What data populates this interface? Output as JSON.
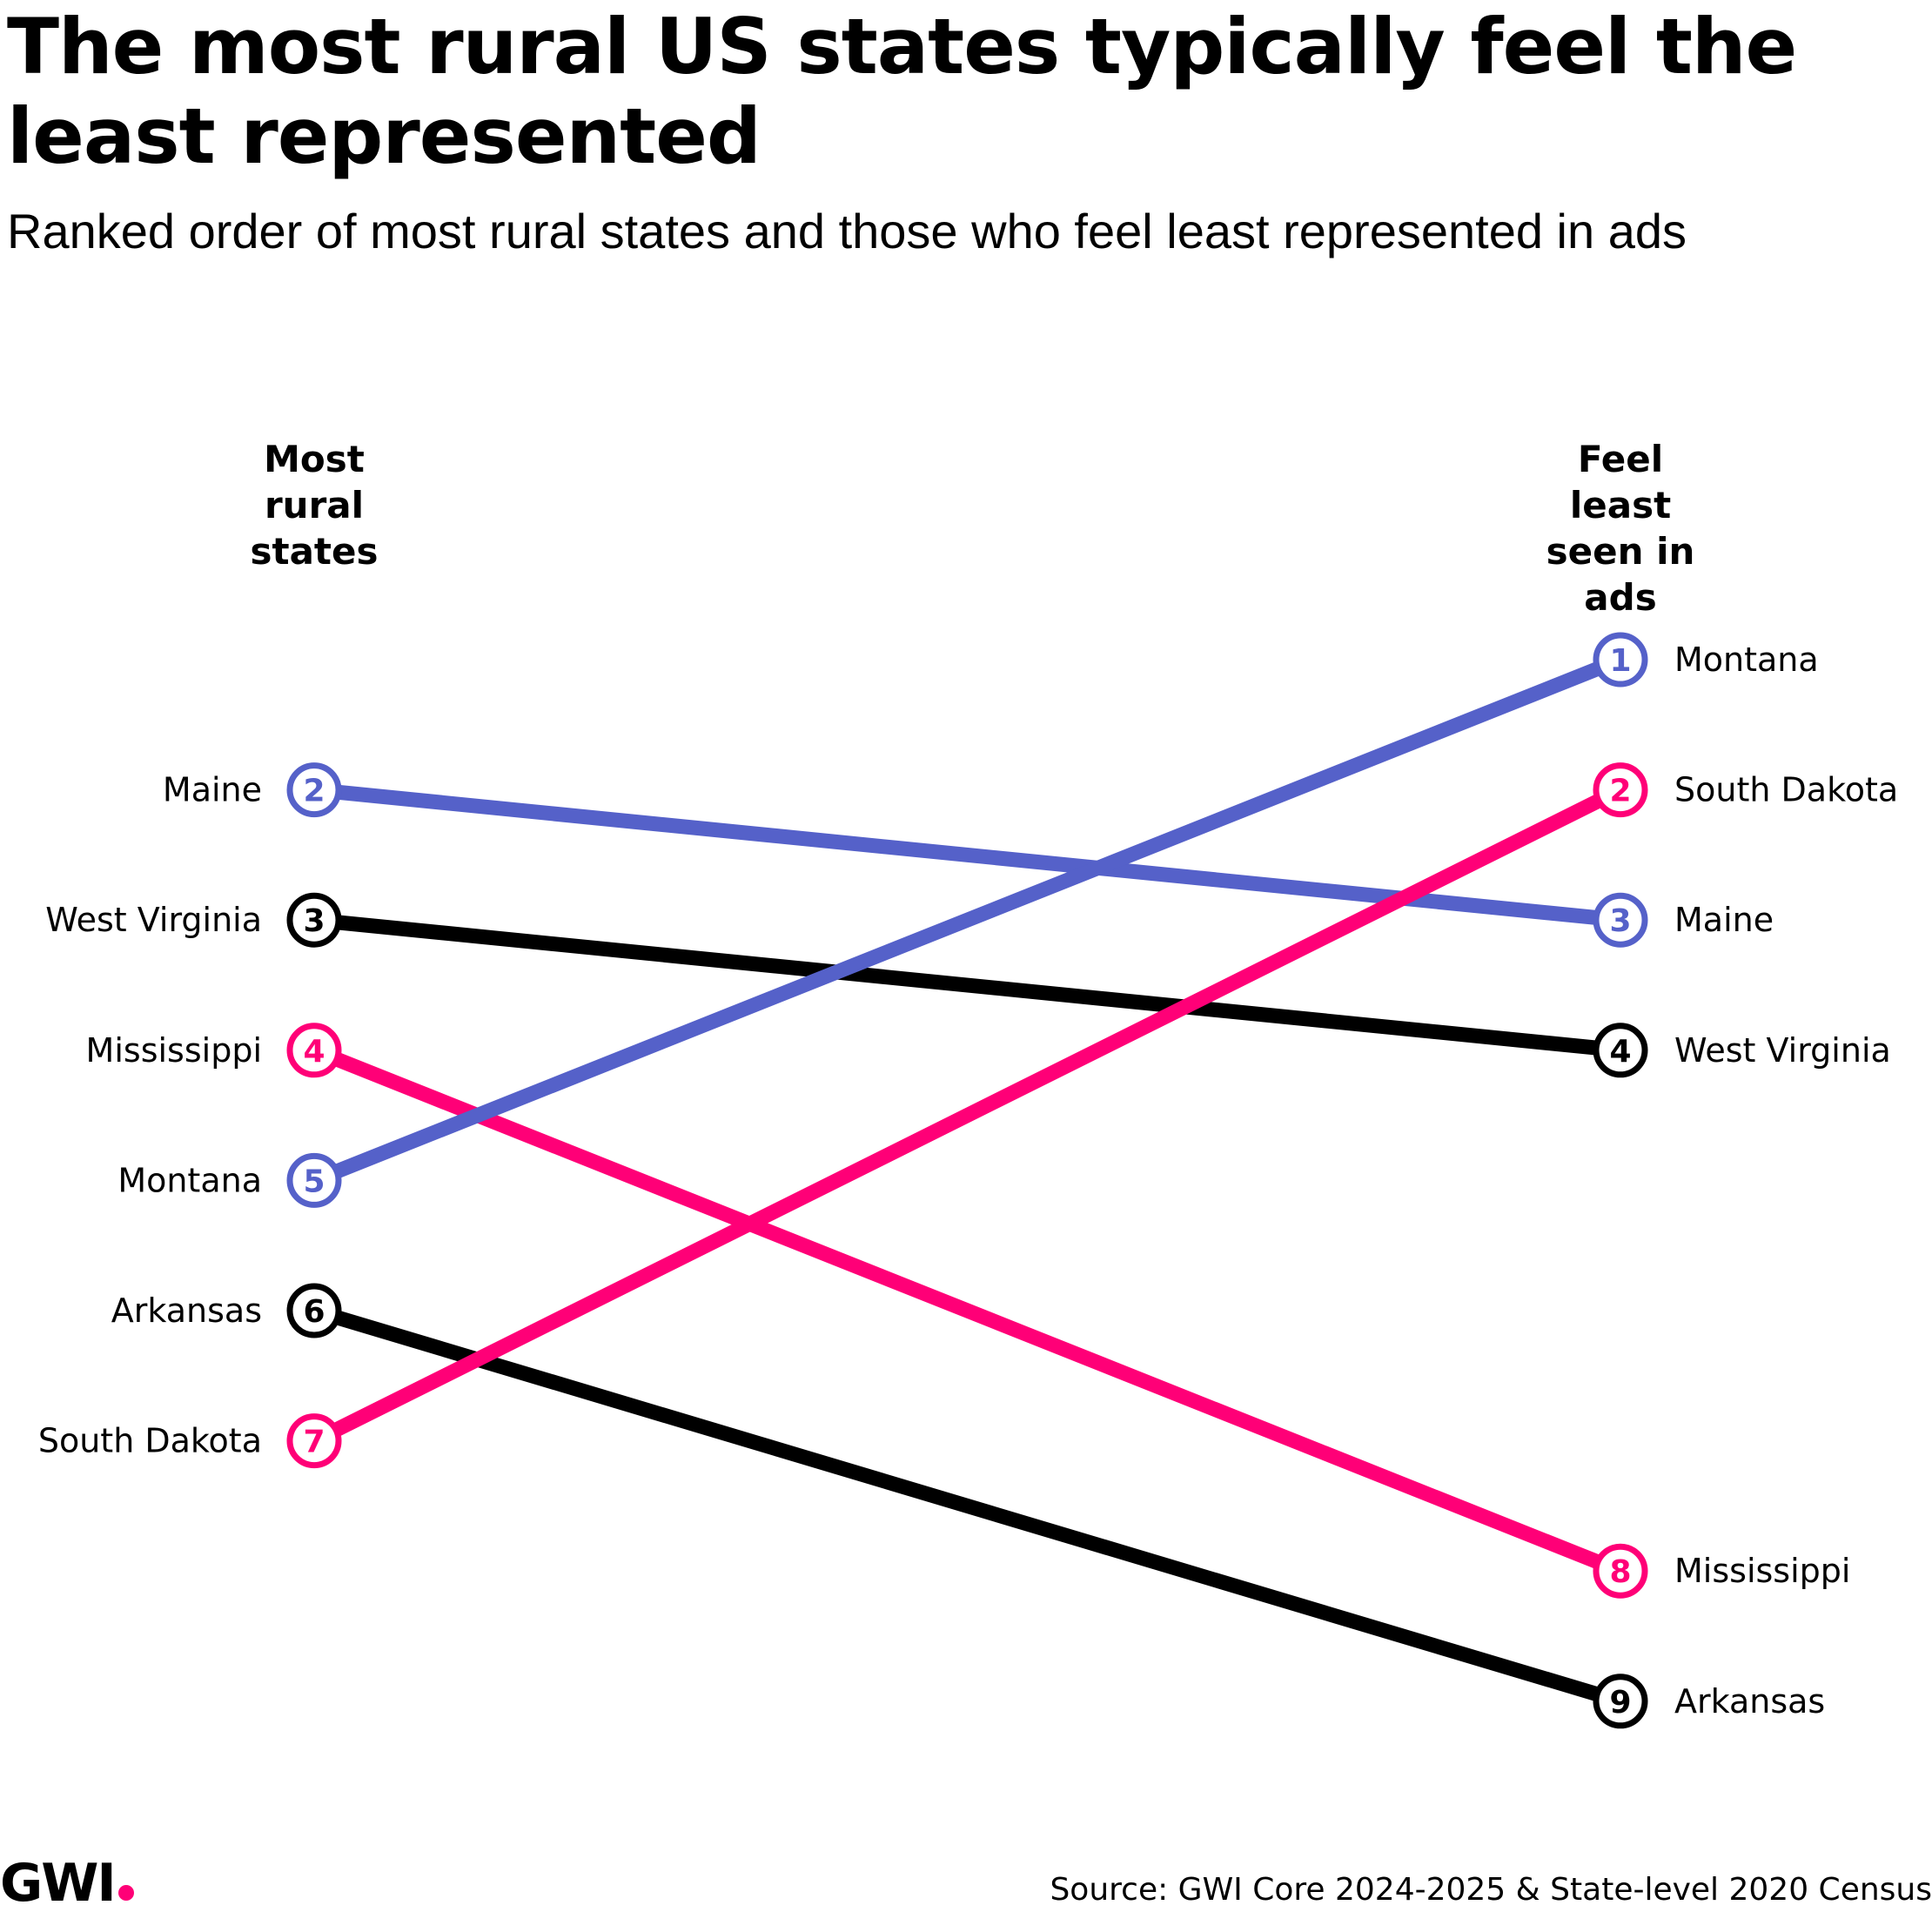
{
  "title": "The most rural US states typically feel the least represented",
  "subtitle": "Ranked order of most rural states and those who feel least represented in ads",
  "source": "Source: GWI Core 2024-2025 & State-level 2020 Census",
  "brand": {
    "name": "GWI",
    "dot_color": "#ff0077"
  },
  "colors": {
    "blue": "#5561c9",
    "pink": "#ff0077",
    "black": "#000000"
  },
  "chart_data": {
    "type": "slope",
    "left_axis_label": "Most rural states",
    "right_axis_label": "Feel least seen in ads",
    "left_header_lines": [
      "Most",
      "rural",
      "states"
    ],
    "right_header_lines": [
      "Feel",
      "least",
      "seen in",
      "ads"
    ],
    "rank_range": [
      1,
      9
    ],
    "series": [
      {
        "name": "Maine",
        "left_rank": 2,
        "right_rank": 3,
        "color": "blue"
      },
      {
        "name": "West Virginia",
        "left_rank": 3,
        "right_rank": 4,
        "color": "black"
      },
      {
        "name": "Mississippi",
        "left_rank": 4,
        "right_rank": 8,
        "color": "pink"
      },
      {
        "name": "Montana",
        "left_rank": 5,
        "right_rank": 1,
        "color": "blue"
      },
      {
        "name": "Arkansas",
        "left_rank": 6,
        "right_rank": 9,
        "color": "black"
      },
      {
        "name": "South Dakota",
        "left_rank": 7,
        "right_rank": 2,
        "color": "pink"
      }
    ]
  }
}
